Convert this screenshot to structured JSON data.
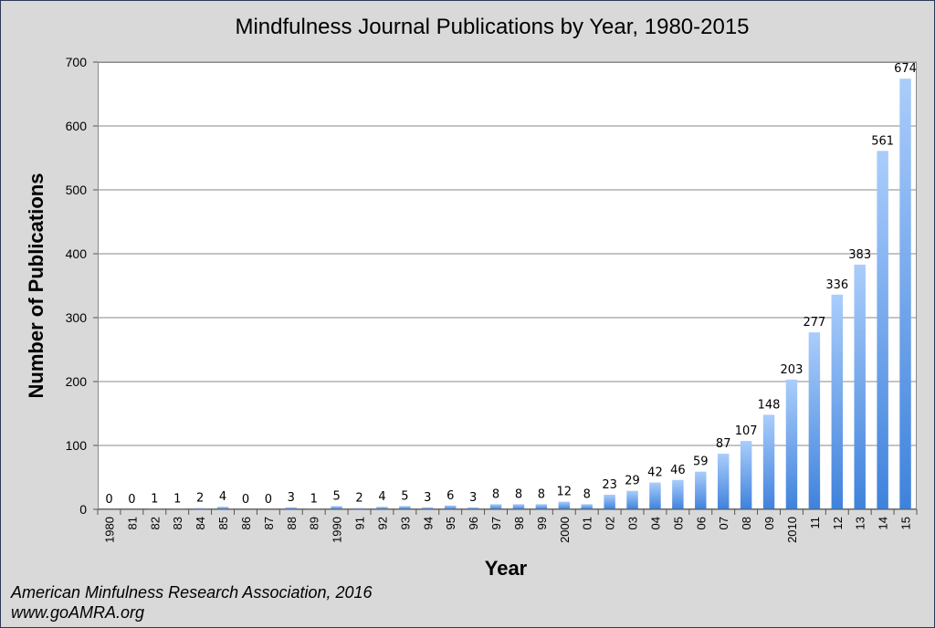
{
  "chart_data": {
    "type": "bar",
    "title": "Mindfulness Journal Publications by Year, 1980-2015",
    "xlabel": "Year",
    "ylabel": "Number of Publications",
    "ylim": [
      0,
      700
    ],
    "yticks": [
      0,
      100,
      200,
      300,
      400,
      500,
      600,
      700
    ],
    "grid": true,
    "categories": [
      "1980",
      "81",
      "82",
      "83",
      "84",
      "85",
      "86",
      "87",
      "88",
      "89",
      "1990",
      "91",
      "92",
      "93",
      "94",
      "95",
      "96",
      "97",
      "98",
      "99",
      "2000",
      "01",
      "02",
      "03",
      "04",
      "05",
      "06",
      "07",
      "08",
      "09",
      "2010",
      "11",
      "12",
      "13",
      "14",
      "15"
    ],
    "values": [
      0,
      0,
      1,
      1,
      2,
      4,
      0,
      0,
      3,
      1,
      5,
      2,
      4,
      5,
      3,
      6,
      3,
      8,
      8,
      8,
      12,
      8,
      23,
      29,
      42,
      46,
      59,
      87,
      107,
      148,
      203,
      277,
      336,
      383,
      561,
      674
    ]
  },
  "footer": {
    "line1": "American Minfulness Research Association, 2016",
    "line2": "www.goAMRA.org"
  },
  "colors": {
    "bar_top": "#aacdfb",
    "bar_bottom": "#3f82dc",
    "background": "#d9d9d9",
    "gridline": "#8a8a8a"
  }
}
